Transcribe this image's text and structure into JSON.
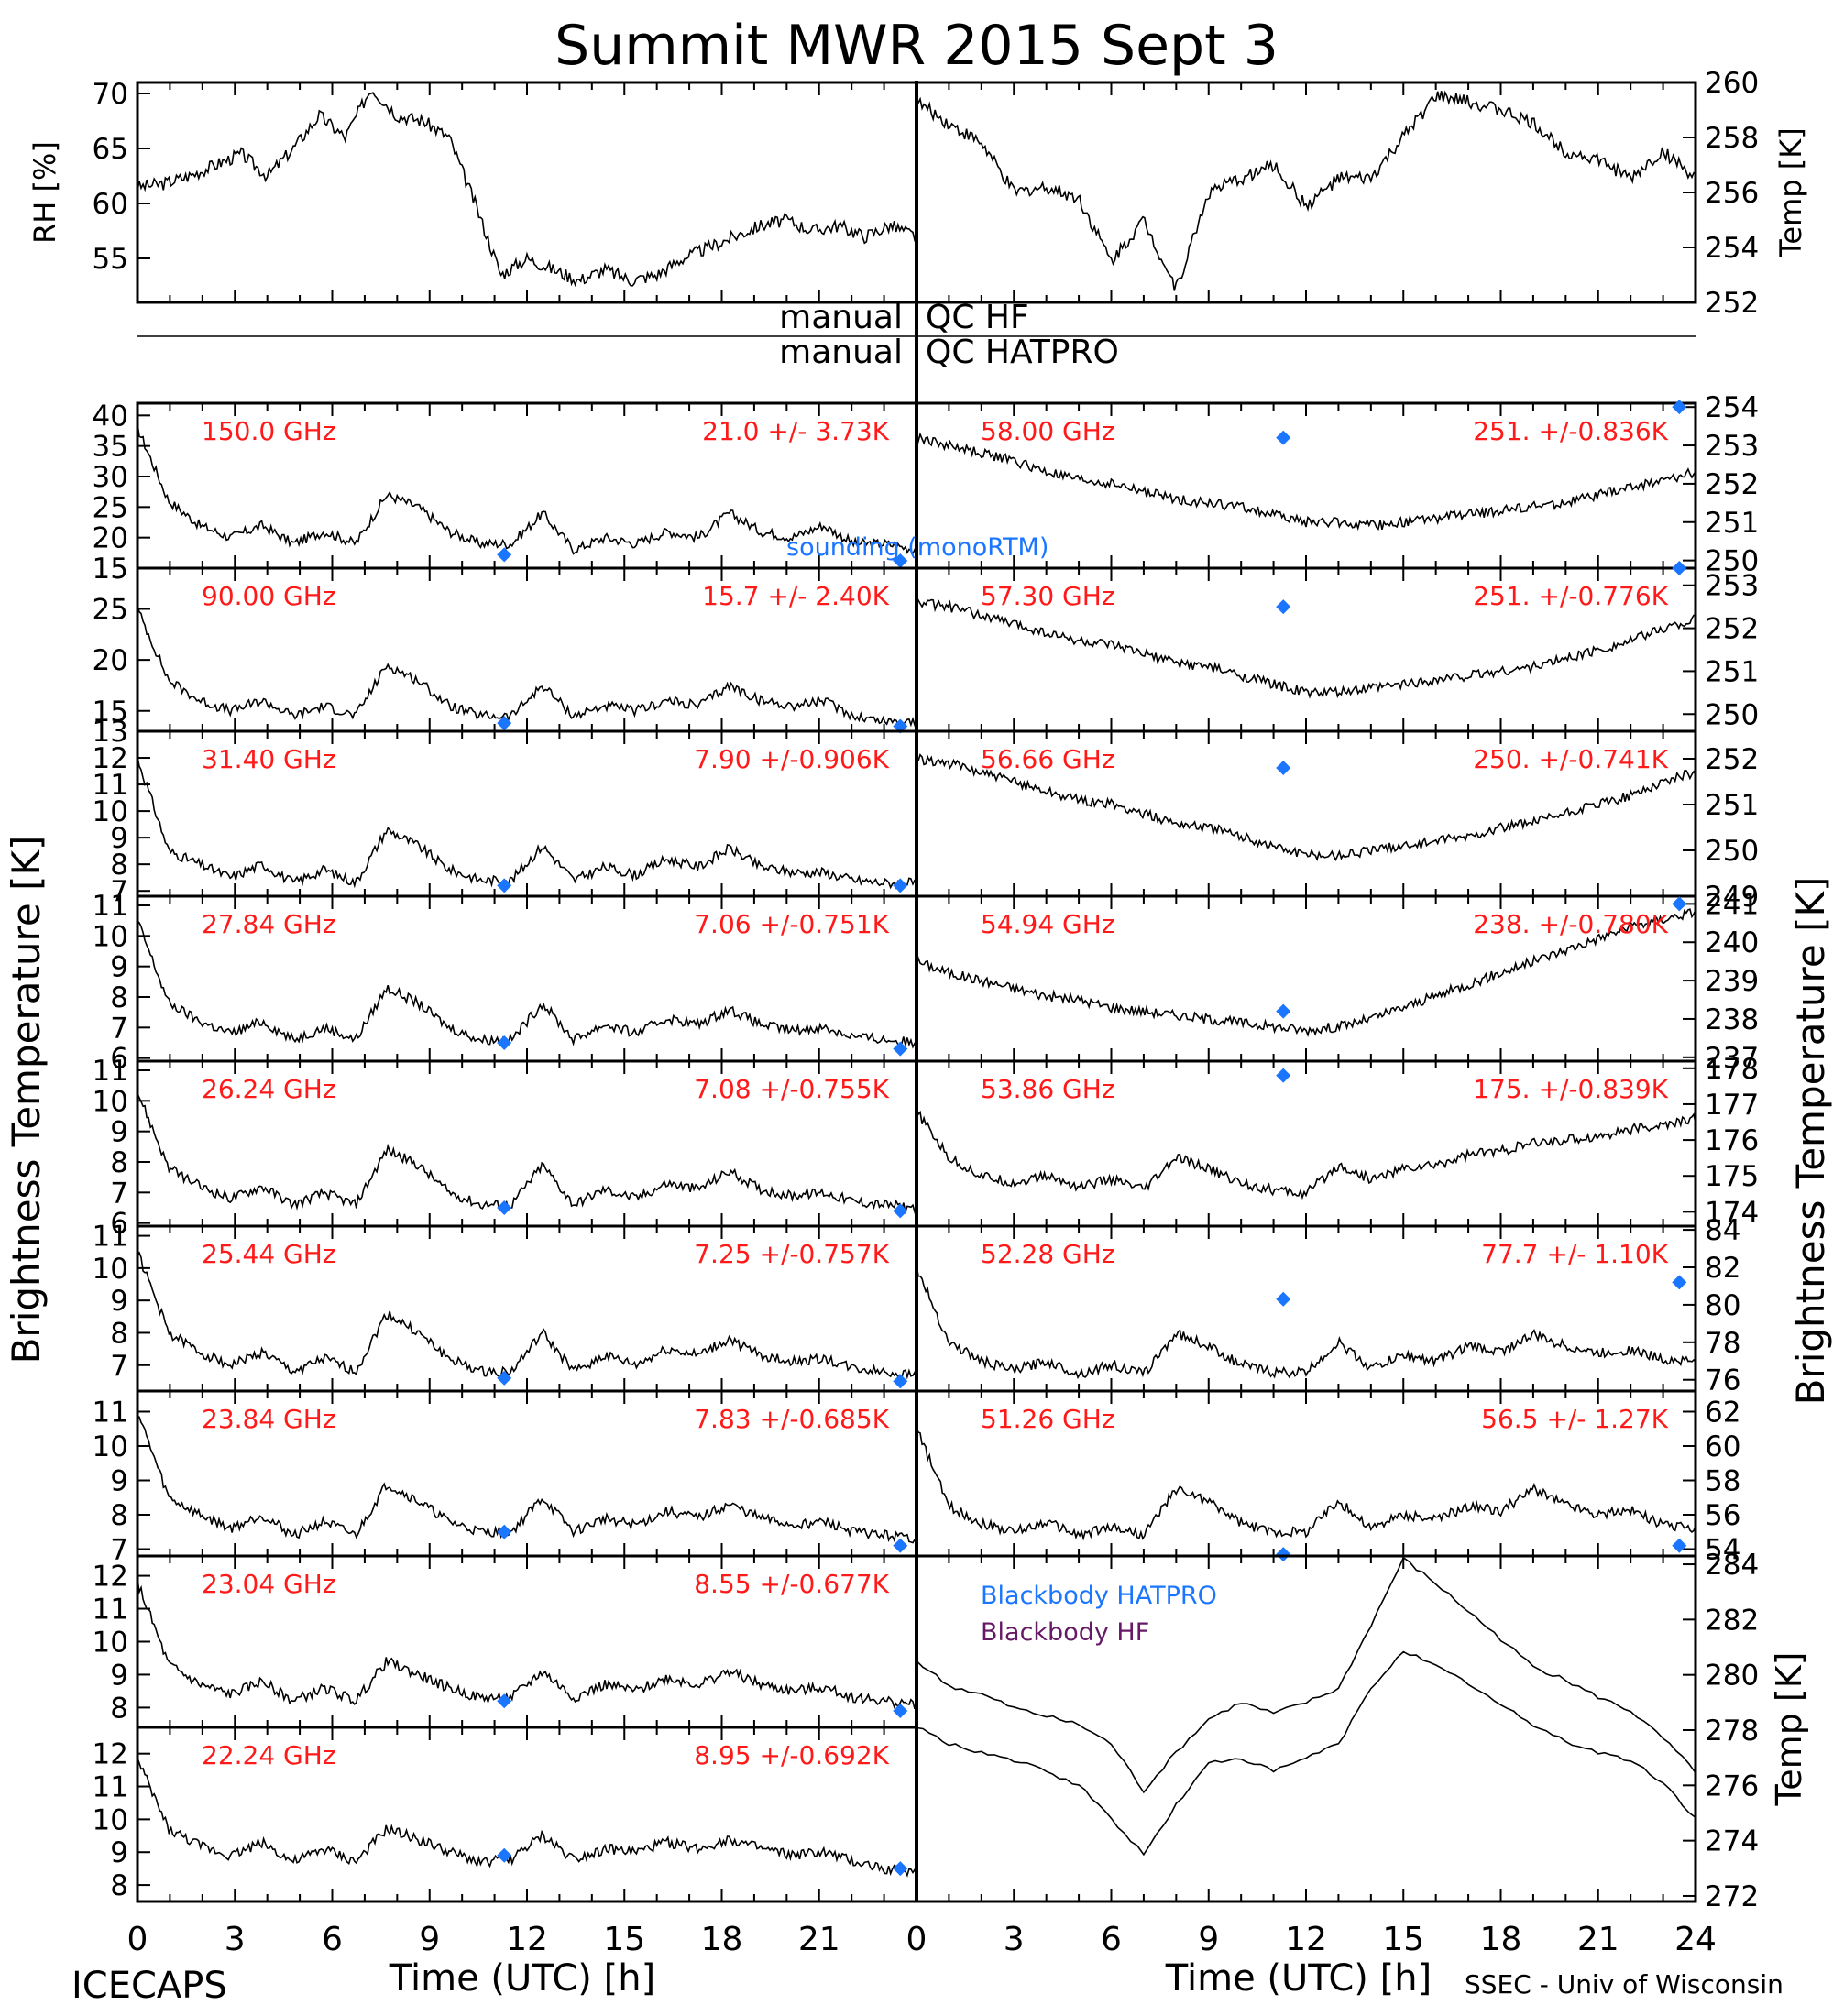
{
  "figure": {
    "title": "Summit MWR 2015 Sept  3",
    "footer_left": "ICECAPS",
    "footer_right": "SSEC - Univ of Wisconsin",
    "qc_labels": {
      "left": [
        "manual",
        "manual"
      ],
      "right": [
        "QC HF",
        "QC HATPRO"
      ]
    },
    "left_ylabel": "Brightness Temperature [K]",
    "right_ylabel": "Brightness Temperature [K]",
    "xlabel": "Time (UTC) [h]",
    "x_ticks": [
      0,
      3,
      6,
      9,
      12,
      15,
      18,
      21
    ],
    "x_ticks_right": [
      0,
      3,
      6,
      9,
      12,
      15,
      18,
      21,
      24
    ],
    "colors": {
      "annotation": "#ff1a1a",
      "marker": "#1a75ff",
      "hatpro": "#1a75ff",
      "hf": "#661a66",
      "data": "#000000"
    }
  },
  "chart_data": [
    {
      "id": "rh",
      "type": "line",
      "ylabel": "RH [%]",
      "ylim": [
        51,
        71
      ],
      "yticks": [
        55,
        60,
        65,
        70
      ],
      "series": [
        {
          "values": [
            61.5,
            61.8,
            62.5,
            63.5,
            64.5,
            62.5,
            65,
            68,
            66,
            70.5,
            68,
            67.5,
            66,
            60,
            53.5,
            55,
            54,
            53,
            54,
            53,
            53.5,
            55,
            56,
            57,
            58,
            58.5,
            57.5,
            58,
            57,
            58,
            57
          ]
        }
      ]
    },
    {
      "id": "temp",
      "type": "line",
      "ylabel": "Temp [K]",
      "ylim": [
        252,
        260
      ],
      "yticks": [
        252,
        254,
        256,
        258,
        260
      ],
      "series": [
        {
          "values": [
            259.3,
            258.5,
            257.8,
            256,
            256.2,
            255.8,
            253.5,
            255,
            252.5,
            256,
            256.5,
            257,
            255.5,
            256.5,
            256.5,
            258,
            259.5,
            259.3,
            259,
            258.5,
            257.5,
            257.2,
            256.5,
            257.5,
            256.5
          ]
        }
      ]
    },
    {
      "id": "c150",
      "type": "line",
      "label": "150.0 GHz",
      "stats": "21.0 +/-  3.73K",
      "ylim": [
        15,
        42
      ],
      "yticks": [
        15,
        20,
        25,
        30,
        35,
        40
      ],
      "note": "sounding (monoRTM)",
      "series": [
        {
          "values": [
            38,
            26,
            22,
            20,
            22,
            19,
            21,
            19,
            27,
            25,
            21,
            19,
            19,
            24,
            18,
            20,
            19,
            21,
            20,
            24,
            21,
            20,
            22,
            19,
            19,
            18
          ]
        }
      ],
      "markers": [
        {
          "x": 11.3,
          "y": 17.2
        },
        {
          "x": 23.5,
          "y": 16.2
        }
      ]
    },
    {
      "id": "c9000",
      "type": "line",
      "label": "90.00 GHz",
      "stats": "15.7 +/-  2.40K",
      "ylim": [
        13,
        29
      ],
      "yticks": [
        15,
        20,
        25
      ],
      "series": [
        {
          "values": [
            25,
            18,
            16,
            15,
            16,
            14.5,
            15.5,
            14.5,
            19.5,
            18,
            15.5,
            14.5,
            14.5,
            17.5,
            14.5,
            15.5,
            15,
            16,
            15.5,
            17.5,
            16,
            15.5,
            16,
            14.5,
            14,
            14
          ]
        }
      ],
      "markers": [
        {
          "x": 11.3,
          "y": 13.8
        },
        {
          "x": 23.5,
          "y": 13.5
        }
      ]
    },
    {
      "id": "c3140",
      "type": "line",
      "label": "31.40 GHz",
      "stats": "7.90 +/-0.906K",
      "ylim": [
        6.8,
        13
      ],
      "yticks": [
        7,
        8,
        9,
        10,
        11,
        12,
        13
      ],
      "series": [
        {
          "values": [
            12,
            8.5,
            8,
            7.5,
            8,
            7.3,
            7.8,
            7.3,
            9.3,
            8.7,
            7.8,
            7.4,
            7.4,
            8.7,
            7.4,
            7.9,
            7.6,
            8.2,
            7.9,
            8.6,
            7.9,
            7.7,
            7.7,
            7.4,
            7.3,
            7.3
          ]
        }
      ],
      "markers": [
        {
          "x": 11.3,
          "y": 7.2
        },
        {
          "x": 23.5,
          "y": 7.2
        }
      ]
    },
    {
      "id": "c2784",
      "type": "line",
      "label": "27.84 GHz",
      "stats": "7.06 +/-0.751K",
      "ylim": [
        5.9,
        11.3
      ],
      "yticks": [
        6,
        7,
        8,
        9,
        10,
        11
      ],
      "series": [
        {
          "values": [
            10.5,
            7.8,
            7.2,
            6.8,
            7.2,
            6.6,
            7,
            6.6,
            8.3,
            7.8,
            7,
            6.6,
            6.6,
            7.8,
            6.6,
            7.1,
            6.8,
            7.3,
            7.1,
            7.6,
            7.1,
            6.9,
            7,
            6.7,
            6.6,
            6.5
          ]
        }
      ],
      "markers": [
        {
          "x": 11.3,
          "y": 6.5
        },
        {
          "x": 23.5,
          "y": 6.3
        }
      ]
    },
    {
      "id": "c2624",
      "type": "line",
      "label": "26.24 GHz",
      "stats": "7.08 +/-0.755K",
      "ylim": [
        5.9,
        11.3
      ],
      "yticks": [
        6,
        7,
        8,
        9,
        10,
        11
      ],
      "series": [
        {
          "values": [
            10.3,
            7.8,
            7.2,
            6.8,
            7.2,
            6.6,
            7,
            6.6,
            8.4,
            7.9,
            7,
            6.6,
            6.6,
            7.9,
            6.6,
            7.1,
            6.8,
            7.3,
            7.1,
            7.7,
            7.1,
            6.9,
            7,
            6.7,
            6.6,
            6.5
          ]
        }
      ],
      "markers": [
        {
          "x": 11.3,
          "y": 6.5
        },
        {
          "x": 23.5,
          "y": 6.4
        }
      ]
    },
    {
      "id": "c2544",
      "type": "line",
      "label": "25.44 GHz",
      "stats": "7.25 +/-0.757K",
      "ylim": [
        6.2,
        11.3
      ],
      "yticks": [
        7,
        8,
        9,
        10,
        11
      ],
      "series": [
        {
          "values": [
            10.5,
            8,
            7.4,
            7,
            7.4,
            6.8,
            7.2,
            6.8,
            8.6,
            8,
            7.2,
            6.8,
            6.8,
            8,
            6.8,
            7.3,
            7,
            7.5,
            7.3,
            7.8,
            7.3,
            7.1,
            7.2,
            6.9,
            6.8,
            6.7
          ]
        }
      ],
      "markers": [
        {
          "x": 11.3,
          "y": 6.6
        },
        {
          "x": 23.5,
          "y": 6.5
        }
      ]
    },
    {
      "id": "c2384",
      "type": "line",
      "label": "23.84 GHz",
      "stats": "7.83 +/-0.685K",
      "ylim": [
        6.8,
        11.6
      ],
      "yticks": [
        7,
        8,
        9,
        10,
        11
      ],
      "series": [
        {
          "values": [
            11,
            8.5,
            8,
            7.6,
            8,
            7.4,
            7.8,
            7.4,
            8.9,
            8.4,
            7.8,
            7.5,
            7.5,
            8.5,
            7.5,
            7.9,
            7.7,
            8.1,
            7.9,
            8.3,
            7.9,
            7.7,
            7.8,
            7.5,
            7.4,
            7.3
          ]
        }
      ],
      "markers": [
        {
          "x": 11.3,
          "y": 7.5
        },
        {
          "x": 23.5,
          "y": 7.1
        }
      ]
    },
    {
      "id": "c2304",
      "type": "line",
      "label": "23.04 GHz",
      "stats": "8.55 +/-0.677K",
      "ylim": [
        7.4,
        12.6
      ],
      "yticks": [
        8,
        9,
        10,
        11,
        12
      ],
      "series": [
        {
          "values": [
            11.8,
            9.3,
            8.7,
            8.4,
            8.8,
            8.2,
            8.6,
            8.2,
            9.4,
            9,
            8.6,
            8.3,
            8.3,
            9.1,
            8.3,
            8.7,
            8.5,
            8.9,
            8.7,
            9.1,
            8.7,
            8.5,
            8.6,
            8.3,
            8.2,
            8.1
          ]
        }
      ],
      "markers": [
        {
          "x": 11.3,
          "y": 8.2
        },
        {
          "x": 23.5,
          "y": 7.9
        }
      ]
    },
    {
      "id": "c2224",
      "type": "line",
      "label": "22.24 GHz",
      "stats": "8.95 +/-0.692K",
      "ylim": [
        7.5,
        12.8
      ],
      "yticks": [
        8,
        9,
        10,
        11,
        12
      ],
      "series": [
        {
          "values": [
            11.8,
            9.7,
            9.2,
            8.9,
            9.3,
            8.7,
            9.1,
            8.7,
            9.7,
            9.4,
            9,
            8.7,
            8.8,
            9.5,
            8.8,
            9.1,
            9,
            9.3,
            9.1,
            9.4,
            9.1,
            8.9,
            9,
            8.7,
            8.5,
            8.4
          ]
        }
      ],
      "markers": [
        {
          "x": 11.3,
          "y": 8.9
        },
        {
          "x": 23.5,
          "y": 8.5
        }
      ]
    },
    {
      "id": "c5800",
      "type": "line",
      "label": "58.00 GHz",
      "stats": "251. +/-0.836K",
      "ylim": [
        249.8,
        254.1
      ],
      "yticks": [
        250,
        251,
        252,
        253,
        254
      ],
      "series": [
        {
          "values": [
            253.2,
            253,
            252.8,
            252.6,
            252.3,
            252.1,
            252,
            251.8,
            251.6,
            251.5,
            251.4,
            251.2,
            251,
            251,
            250.9,
            251,
            251.1,
            251.2,
            251.3,
            251.4,
            251.5,
            251.7,
            251.9,
            252.1,
            252.3
          ]
        }
      ],
      "markers": [
        {
          "x": 11.3,
          "y": 253.2
        },
        {
          "x": 23.5,
          "y": 254
        }
      ]
    },
    {
      "id": "c5730",
      "type": "line",
      "label": "57.30 GHz",
      "stats": "251. +/-0.776K",
      "ylim": [
        249.6,
        253.4
      ],
      "yticks": [
        250,
        251,
        252,
        253
      ],
      "series": [
        {
          "values": [
            252.6,
            252.5,
            252.3,
            252.1,
            251.9,
            251.7,
            251.6,
            251.4,
            251.2,
            251.1,
            250.9,
            250.7,
            250.5,
            250.5,
            250.6,
            250.7,
            250.8,
            250.9,
            251,
            251.1,
            251.3,
            251.5,
            251.7,
            252,
            252.2
          ]
        }
      ],
      "markers": [
        {
          "x": 11.3,
          "y": 252.5
        },
        {
          "x": 23.5,
          "y": 253.4
        }
      ]
    },
    {
      "id": "c5666",
      "type": "line",
      "label": "56.66 GHz",
      "stats": "250. +/-0.741K",
      "ylim": [
        249,
        252.6
      ],
      "yticks": [
        249,
        250,
        251,
        252
      ],
      "series": [
        {
          "values": [
            252,
            251.9,
            251.7,
            251.5,
            251.3,
            251.1,
            251,
            250.8,
            250.6,
            250.5,
            250.3,
            250.1,
            249.9,
            249.9,
            250,
            250.1,
            250.2,
            250.3,
            250.5,
            250.6,
            250.8,
            251,
            251.2,
            251.5,
            251.7
          ]
        }
      ],
      "markers": [
        {
          "x": 11.3,
          "y": 251.8
        }
      ]
    },
    {
      "id": "c5494",
      "type": "line",
      "label": "54.94 GHz",
      "stats": "238. +/-0.780K",
      "ylim": [
        236.9,
        241.2
      ],
      "yticks": [
        237,
        238,
        239,
        240,
        241
      ],
      "series": [
        {
          "values": [
            239.5,
            239.2,
            239,
            238.8,
            238.6,
            238.5,
            238.3,
            238.2,
            238.1,
            238,
            237.9,
            237.8,
            237.7,
            237.8,
            238,
            238.3,
            238.6,
            238.9,
            239.2,
            239.5,
            239.8,
            240.1,
            240.4,
            240.6,
            240.8
          ]
        }
      ],
      "markers": [
        {
          "x": 11.3,
          "y": 238.2
        },
        {
          "x": 23.5,
          "y": 241
        }
      ]
    },
    {
      "id": "c5386",
      "type": "line",
      "label": "53.86 GHz",
      "stats": "175. +/-0.839K",
      "ylim": [
        173.6,
        178.2
      ],
      "yticks": [
        174,
        175,
        176,
        177,
        178
      ],
      "series": [
        {
          "values": [
            176.8,
            175.5,
            175,
            174.8,
            175,
            174.7,
            174.9,
            174.6,
            175.5,
            175.2,
            174.8,
            174.6,
            174.5,
            175.3,
            174.9,
            175.2,
            175.3,
            175.6,
            175.7,
            175.9,
            176,
            176.1,
            176.3,
            176.4,
            176.6
          ]
        }
      ],
      "markers": [
        {
          "x": 11.3,
          "y": 177.8
        }
      ]
    },
    {
      "id": "c5228",
      "type": "line",
      "label": "52.28 GHz",
      "stats": "77.7 +/- 1.10K",
      "ylim": [
        75.4,
        84.2
      ],
      "yticks": [
        76,
        78,
        80,
        82,
        84
      ],
      "series": [
        {
          "values": [
            82,
            78,
            77,
            76.5,
            77,
            76.3,
            76.8,
            76.3,
            78.5,
            77.8,
            76.8,
            76.4,
            76.4,
            78,
            76.6,
            77.3,
            77,
            77.8,
            77.5,
            78.4,
            77.8,
            77.4,
            77.6,
            77.1,
            77
          ]
        }
      ],
      "markers": [
        {
          "x": 11.3,
          "y": 80.3
        },
        {
          "x": 23.5,
          "y": 81.2
        }
      ]
    },
    {
      "id": "c5126",
      "type": "line",
      "label": "51.26 GHz",
      "stats": "56.5 +/- 1.27K",
      "ylim": [
        53.6,
        63.2
      ],
      "yticks": [
        54,
        56,
        58,
        60,
        62
      ],
      "series": [
        {
          "values": [
            61,
            56.5,
            55.5,
            55,
            55.6,
            54.8,
            55.3,
            54.8,
            57.5,
            56.8,
            55.5,
            55,
            55,
            56.8,
            55.2,
            56,
            55.7,
            56.5,
            56.2,
            57.5,
            56.6,
            56,
            56.3,
            55.4,
            55.2
          ]
        }
      ],
      "markers": [
        {
          "x": 11.3,
          "y": 53.7
        },
        {
          "x": 23.5,
          "y": 54.2
        }
      ]
    },
    {
      "id": "bb",
      "type": "line",
      "ylabel": "Temp [K]",
      "ylim": [
        271.8,
        284.3
      ],
      "yticks": [
        272,
        274,
        276,
        278,
        280,
        282,
        284
      ],
      "series": [
        {
          "name": "Blackbody HATPRO",
          "values": [
            280.5,
            279.6,
            279.3,
            278.8,
            278.5,
            278.2,
            277.5,
            275.8,
            277.2,
            278.4,
            279,
            278.6,
            279,
            279.5,
            281.8,
            284.2,
            283.3,
            282.3,
            281.3,
            280.3,
            279.8,
            279.2,
            278.7,
            277.7,
            276.5
          ]
        },
        {
          "name": "Blackbody HF",
          "values": [
            278.1,
            277.5,
            277.2,
            276.9,
            276.5,
            276,
            274.8,
            273.5,
            275.3,
            276.8,
            277,
            276.5,
            277,
            277.5,
            279.5,
            280.9,
            280.3,
            279.7,
            278.9,
            278.2,
            277.6,
            277.2,
            276.9,
            276.1,
            274.8
          ]
        }
      ]
    }
  ]
}
